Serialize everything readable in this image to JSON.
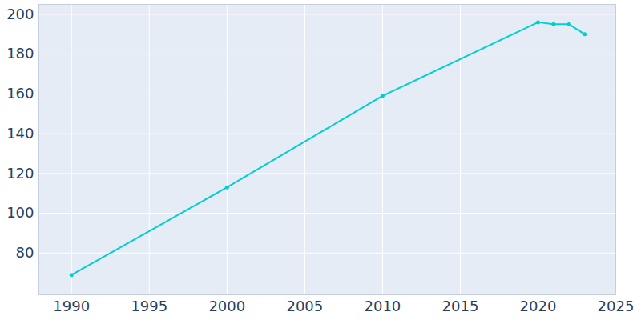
{
  "chart_data": {
    "type": "line",
    "x": [
      1990,
      2000,
      2010,
      2020,
      2021,
      2022,
      2023
    ],
    "values": [
      69,
      113,
      159,
      196,
      195,
      195,
      190
    ],
    "color": "#00ced1",
    "marker": "circle",
    "xlim": [
      1987.9,
      2025
    ],
    "ylim": [
      59,
      205
    ],
    "xticks": [
      1990,
      1995,
      2000,
      2005,
      2010,
      2015,
      2020,
      2025
    ],
    "yticks": [
      80,
      100,
      120,
      140,
      160,
      180,
      200
    ],
    "grid": true
  }
}
